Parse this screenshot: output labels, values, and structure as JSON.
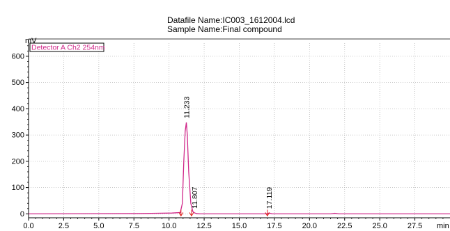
{
  "header": {
    "datafile": "Datafile Name:IC003_1612004.lcd",
    "sample": "Sample Name:Final compound"
  },
  "chart_data": {
    "type": "line",
    "ylabel": "mV",
    "xlabel": "min",
    "xlim": [
      0,
      30
    ],
    "ylim": [
      -15,
      650
    ],
    "x_ticks": [
      0.0,
      2.5,
      5.0,
      7.5,
      10.0,
      12.5,
      15.0,
      17.5,
      20.0,
      22.5,
      25.0,
      27.5
    ],
    "x_tick_labels": [
      "0.0",
      "2.5",
      "5.0",
      "7.5",
      "10.0",
      "12.5",
      "15.0",
      "17.5",
      "20.0",
      "22.5",
      "25.0",
      "27.5"
    ],
    "y_ticks": [
      0,
      100,
      200,
      300,
      400,
      500,
      600
    ],
    "y_tick_labels": [
      "0",
      "100",
      "200",
      "300",
      "400",
      "500",
      "600"
    ],
    "grid": true,
    "legend": "Detector A Ch2 254nm",
    "series": [
      {
        "name": "Detector A Ch2 254nm",
        "color": "#d0288a",
        "x": [
          0.0,
          8.0,
          10.2,
          10.8,
          10.95,
          11.05,
          11.15,
          11.233,
          11.3,
          11.4,
          11.55,
          11.7,
          11.807,
          11.95,
          12.2,
          16.9,
          17.119,
          17.35,
          21.5,
          21.8,
          22.1,
          30.0
        ],
        "values": [
          0,
          1,
          3,
          5,
          40,
          200,
          315,
          348,
          300,
          160,
          40,
          8,
          4,
          1,
          0,
          0,
          3,
          0,
          0,
          2,
          0,
          0
        ]
      }
    ],
    "peaks": [
      {
        "x": 11.233,
        "y": 348,
        "label": "11.233"
      },
      {
        "x": 11.807,
        "y": 4,
        "label": "11.807"
      },
      {
        "x": 17.119,
        "y": 3,
        "label": "17.119"
      }
    ],
    "integration_marks": [
      10.85,
      11.6,
      17.0
    ]
  }
}
